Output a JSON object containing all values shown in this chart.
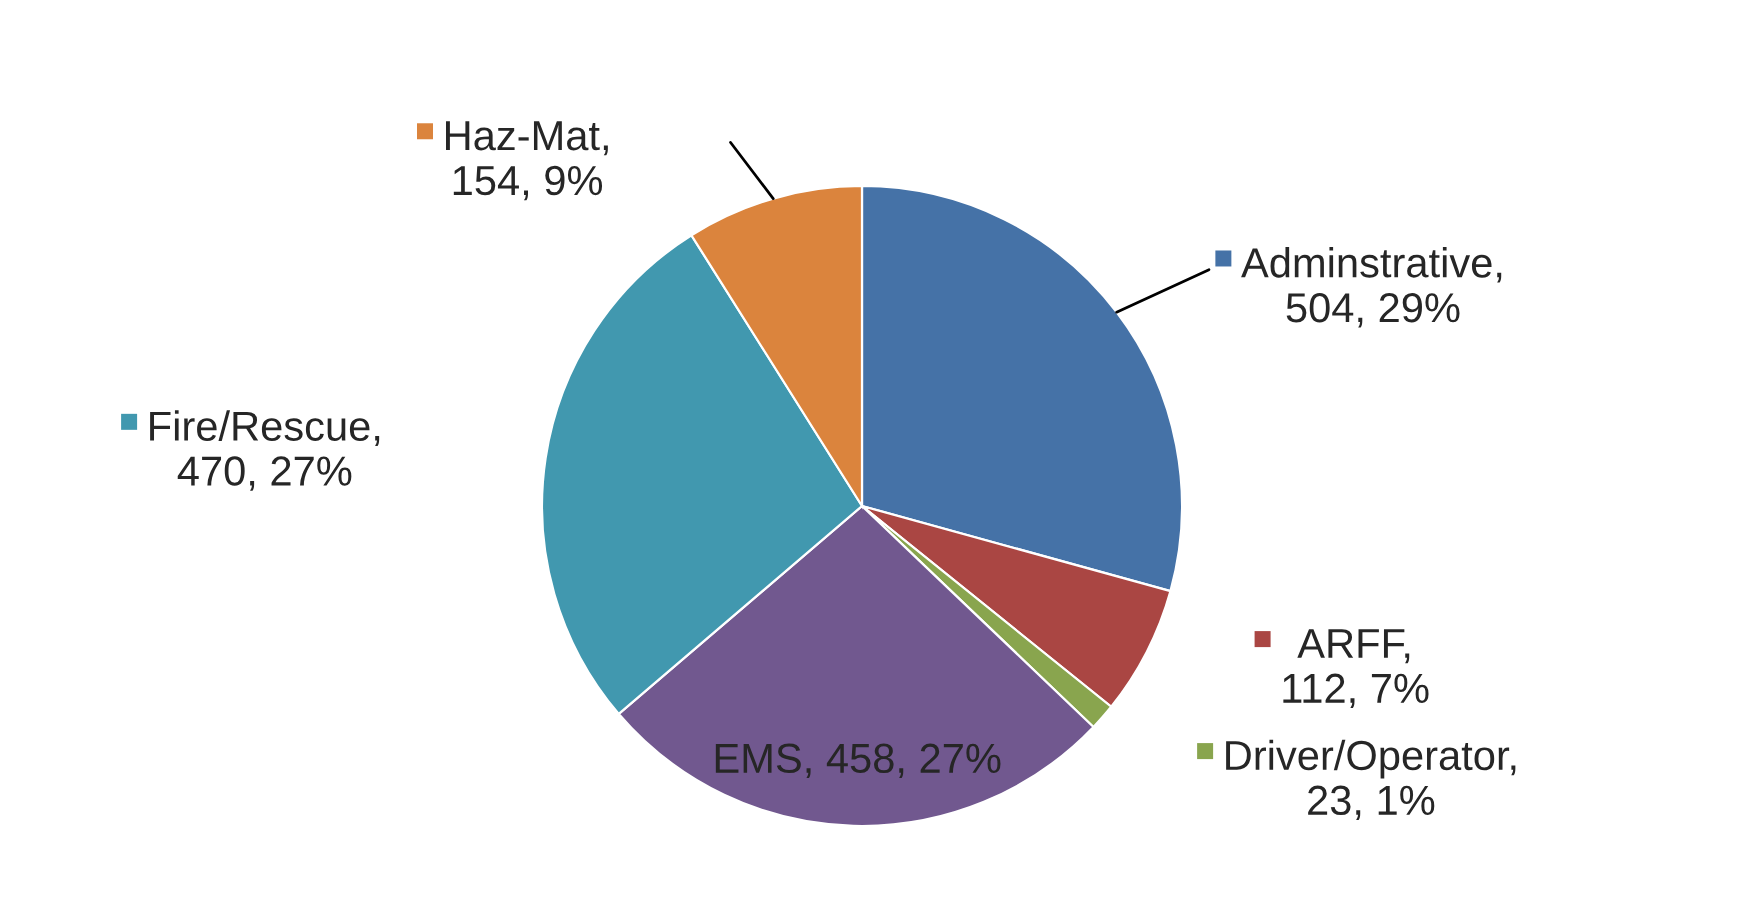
{
  "chart_data": {
    "type": "pie",
    "categories": [
      "Adminstrative",
      "ARFF",
      "Driver/Operator",
      "EMS",
      "Fire/Rescue",
      "Haz-Mat"
    ],
    "values": [
      504,
      112,
      23,
      458,
      470,
      154
    ],
    "value_labels": [
      ", 504, 29%",
      ", 112, 7%",
      ", 23, 1%",
      ", 458, 27%",
      ", 470, 27%",
      ", 154, 9%"
    ],
    "colors": [
      "#4572a7",
      "#aa4643",
      "#89a54e",
      "#71588f",
      "#4198af",
      "#db843d"
    ],
    "legend": "top left"
  }
}
